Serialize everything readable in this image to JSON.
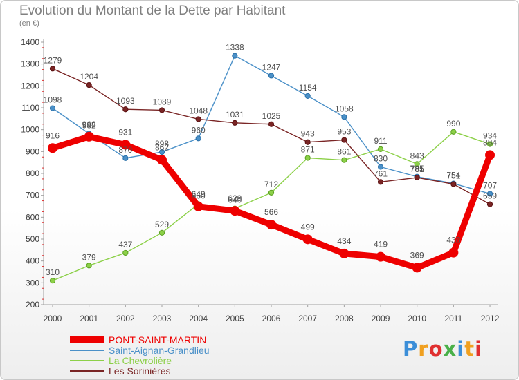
{
  "chart_data": {
    "type": "line",
    "title": "Evolution du Montant de la Dette par Habitant",
    "subtitle": "(en €)",
    "xlabel": "",
    "ylabel": "",
    "categories": [
      "2000",
      "2001",
      "2002",
      "2003",
      "2004",
      "2005",
      "2006",
      "2007",
      "2008",
      "2009",
      "2010",
      "2011",
      "2012"
    ],
    "ylim": [
      200,
      1400
    ],
    "yticks": [
      200,
      300,
      400,
      500,
      600,
      700,
      800,
      900,
      1000,
      1100,
      1200,
      1300,
      1400
    ],
    "grid": false,
    "legend_position": "bottom",
    "series": [
      {
        "name": "Saint-Aignan-Grandlieu",
        "color": "#4a90c8",
        "values": [
          1098,
          982,
          870,
          898,
          960,
          1338,
          1247,
          1154,
          1058,
          830,
          785,
          754,
          707
        ]
      },
      {
        "name": "La Chevrolière",
        "color": "#8cd048",
        "values": [
          310,
          379,
          437,
          529,
          660,
          640,
          712,
          871,
          861,
          911,
          843,
          990,
          934
        ]
      },
      {
        "name": "Les Sorinières",
        "color": "#7a2525",
        "values": [
          1279,
          1204,
          1093,
          1089,
          1048,
          1031,
          1025,
          943,
          953,
          761,
          781,
          751,
          659
        ]
      },
      {
        "name": "PONT-SAINT-MARTIN",
        "color": "#ee0000",
        "values": [
          916,
          968,
          931,
          862,
          649,
          629,
          566,
          499,
          434,
          419,
          369,
          438,
          884
        ]
      }
    ]
  },
  "brand": {
    "text": "Proxiti",
    "colors": [
      "#3b8ed8",
      "#f0a020",
      "#e03030",
      "#49b049",
      "#3b8ed8",
      "#f0a020",
      "#e03030"
    ]
  }
}
